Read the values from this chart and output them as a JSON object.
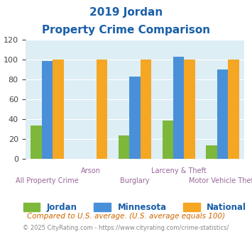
{
  "title_line1": "2019 Jordan",
  "title_line2": "Property Crime Comparison",
  "categories": [
    "All Property Crime",
    "Arson",
    "Burglary",
    "Larceny & Theft",
    "Motor Vehicle Theft"
  ],
  "jordan": [
    34,
    0,
    24,
    39,
    14
  ],
  "minnesota": [
    99,
    0,
    83,
    103,
    90
  ],
  "national": [
    100,
    100,
    100,
    100,
    100
  ],
  "jordan_color": "#7db83a",
  "minnesota_color": "#4a90d9",
  "national_color": "#f5a623",
  "bg_color": "#ddeef4",
  "title_color": "#1a5fa8",
  "xlabel_color": "#996699",
  "ylabel_max": 120,
  "ylabel_step": 20,
  "footnote1": "Compared to U.S. average. (U.S. average equals 100)",
  "footnote2": "© 2025 CityRating.com - https://www.cityrating.com/crime-statistics/",
  "legend_labels": [
    "Jordan",
    "Minnesota",
    "National"
  ]
}
